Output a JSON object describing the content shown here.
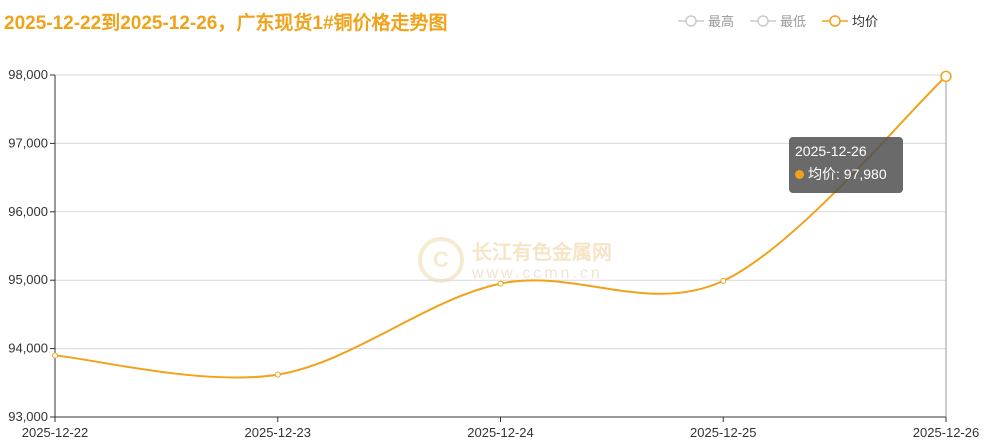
{
  "title": "2025-12-22到2025-12-26，广东现货1#铜价格走势图",
  "legend": [
    {
      "label": "最高",
      "active": false
    },
    {
      "label": "最低",
      "active": false
    },
    {
      "label": "均价",
      "active": true
    }
  ],
  "colors": {
    "accent": "#f0a21b",
    "inactive": "#cccccc",
    "grid": "#d9d9d9",
    "axis": "#333333"
  },
  "watermark": {
    "name": "长江有色金属网",
    "url": "www.ccmn.cn"
  },
  "tooltip": {
    "date": "2025-12-26",
    "label": "均价: 97,980"
  },
  "chart_data": {
    "type": "line",
    "title": "2025-12-22到2025-12-26，广东现货1#铜价格走势图",
    "categories": [
      "2025-12-22",
      "2025-12-23",
      "2025-12-24",
      "2025-12-25",
      "2025-12-26"
    ],
    "series": [
      {
        "name": "均价",
        "values": [
          93900,
          93620,
          94950,
          94990,
          97980
        ]
      }
    ],
    "ylim": [
      93000,
      98000
    ],
    "yticks": [
      93000,
      94000,
      95000,
      96000,
      97000,
      98000
    ],
    "ytick_labels": [
      "93,000",
      "94,000",
      "95,000",
      "96,000",
      "97,000",
      "98,000"
    ],
    "grid": true,
    "legend_position": "top-right"
  }
}
